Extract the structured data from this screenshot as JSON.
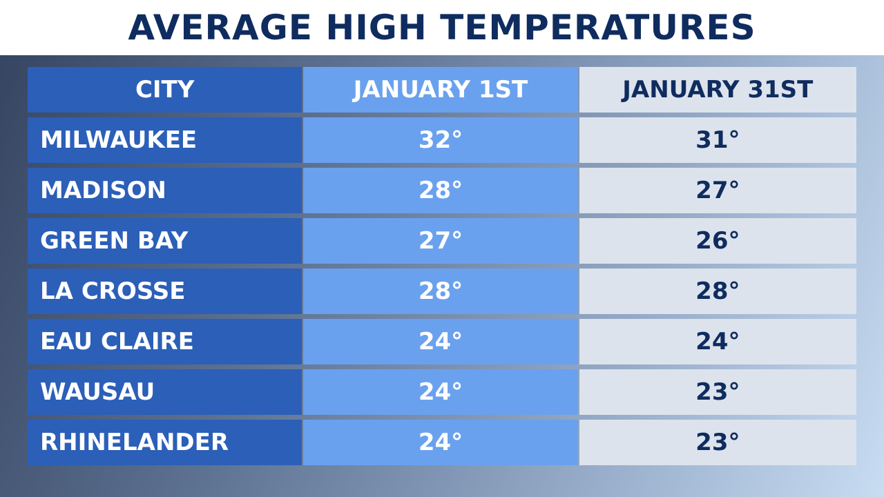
{
  "header": {
    "title": "AVERAGE HIGH TEMPERATURES"
  },
  "table": {
    "columns": [
      "CITY",
      "JANUARY 1ST",
      "JANUARY 31ST"
    ],
    "rows": [
      [
        "MILWAUKEE",
        "32°",
        "31°"
      ],
      [
        "MADISON",
        "28°",
        "27°"
      ],
      [
        "GREEN BAY",
        "27°",
        "26°"
      ],
      [
        "LA CROSSE",
        "28°",
        "28°"
      ],
      [
        "EAU CLAIRE",
        "24°",
        "24°"
      ],
      [
        "WAUSAU",
        "24°",
        "23°"
      ],
      [
        "RHINELANDER",
        "24°",
        "23°"
      ]
    ]
  }
}
